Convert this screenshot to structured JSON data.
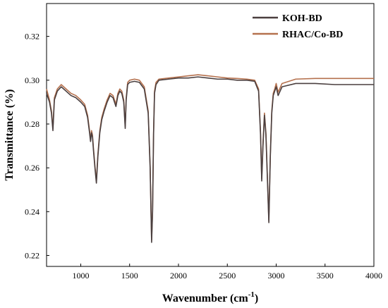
{
  "chart_data": {
    "type": "line",
    "title": "",
    "xlabel": "Wavenumber (cm",
    "xlabel_superscript": "-1",
    "xlabel_close": ")",
    "ylabel": "Transmittance (%)",
    "xlim": [
      650,
      4000
    ],
    "ylim": [
      0.215,
      0.335
    ],
    "xticks": [
      1000,
      1500,
      2000,
      2500,
      3000,
      3500,
      4000
    ],
    "xtick_labels": [
      "1000",
      "1500",
      "2000",
      "2500",
      "3000",
      "3500",
      "4000"
    ],
    "yticks": [
      0.22,
      0.24,
      0.26,
      0.28,
      0.3,
      0.32
    ],
    "ytick_labels": [
      "0.22",
      "0.24",
      "0.26",
      "0.28",
      "0.30",
      "0.32"
    ],
    "grid": false,
    "legend_position": "top-right",
    "series": [
      {
        "name": "KOH-BD",
        "color": "#4a3f3f",
        "x": [
          650,
          680,
          700,
          715,
          730,
          760,
          800,
          850,
          900,
          950,
          1000,
          1040,
          1070,
          1090,
          1100,
          1110,
          1120,
          1130,
          1145,
          1160,
          1175,
          1195,
          1215,
          1240,
          1270,
          1300,
          1330,
          1360,
          1380,
          1400,
          1420,
          1440,
          1455,
          1465,
          1480,
          1500,
          1550,
          1600,
          1650,
          1690,
          1710,
          1725,
          1735,
          1745,
          1755,
          1770,
          1800,
          1900,
          2000,
          2100,
          2200,
          2300,
          2400,
          2500,
          2600,
          2700,
          2780,
          2820,
          2840,
          2852,
          2865,
          2880,
          2895,
          2910,
          2925,
          2940,
          2955,
          2970,
          2985,
          3000,
          3020,
          3060,
          3200,
          3400,
          3600,
          3800,
          4000
        ],
        "y": [
          0.294,
          0.29,
          0.285,
          0.277,
          0.291,
          0.295,
          0.297,
          0.295,
          0.293,
          0.292,
          0.29,
          0.288,
          0.283,
          0.276,
          0.272,
          0.276,
          0.274,
          0.268,
          0.26,
          0.253,
          0.265,
          0.276,
          0.282,
          0.286,
          0.29,
          0.293,
          0.292,
          0.288,
          0.293,
          0.295,
          0.294,
          0.29,
          0.278,
          0.291,
          0.298,
          0.299,
          0.2995,
          0.299,
          0.296,
          0.285,
          0.26,
          0.226,
          0.24,
          0.275,
          0.294,
          0.298,
          0.3,
          0.3005,
          0.301,
          0.301,
          0.3015,
          0.301,
          0.3005,
          0.3005,
          0.3,
          0.3,
          0.2995,
          0.295,
          0.275,
          0.254,
          0.27,
          0.284,
          0.275,
          0.255,
          0.235,
          0.265,
          0.285,
          0.293,
          0.295,
          0.297,
          0.293,
          0.297,
          0.2985,
          0.2985,
          0.298,
          0.298,
          0.298
        ]
      },
      {
        "name": "RHAC/Co-BD",
        "color": "#b5714e",
        "x": [
          650,
          680,
          700,
          715,
          730,
          760,
          800,
          850,
          900,
          950,
          1000,
          1040,
          1070,
          1090,
          1100,
          1110,
          1120,
          1130,
          1145,
          1160,
          1175,
          1195,
          1215,
          1240,
          1270,
          1300,
          1330,
          1360,
          1380,
          1400,
          1420,
          1440,
          1455,
          1465,
          1480,
          1500,
          1550,
          1600,
          1650,
          1690,
          1710,
          1725,
          1735,
          1745,
          1755,
          1770,
          1800,
          1900,
          2000,
          2100,
          2200,
          2300,
          2400,
          2500,
          2600,
          2700,
          2780,
          2820,
          2840,
          2852,
          2865,
          2880,
          2895,
          2910,
          2925,
          2940,
          2955,
          2970,
          2985,
          3000,
          3020,
          3060,
          3200,
          3400,
          3600,
          3800,
          4000
        ],
        "y": [
          0.296,
          0.291,
          0.286,
          0.278,
          0.292,
          0.296,
          0.298,
          0.296,
          0.294,
          0.293,
          0.291,
          0.289,
          0.284,
          0.277,
          0.273,
          0.277,
          0.275,
          0.269,
          0.261,
          0.254,
          0.266,
          0.277,
          0.283,
          0.287,
          0.291,
          0.294,
          0.293,
          0.289,
          0.294,
          0.296,
          0.295,
          0.291,
          0.279,
          0.292,
          0.299,
          0.3,
          0.3005,
          0.3,
          0.297,
          0.286,
          0.261,
          0.227,
          0.241,
          0.276,
          0.295,
          0.299,
          0.3005,
          0.301,
          0.3015,
          0.302,
          0.3025,
          0.302,
          0.3015,
          0.301,
          0.3008,
          0.3005,
          0.3,
          0.296,
          0.276,
          0.255,
          0.271,
          0.285,
          0.276,
          0.256,
          0.236,
          0.266,
          0.286,
          0.294,
          0.296,
          0.2985,
          0.2945,
          0.2985,
          0.3005,
          0.3008,
          0.3008,
          0.3008,
          0.3008
        ]
      }
    ]
  }
}
